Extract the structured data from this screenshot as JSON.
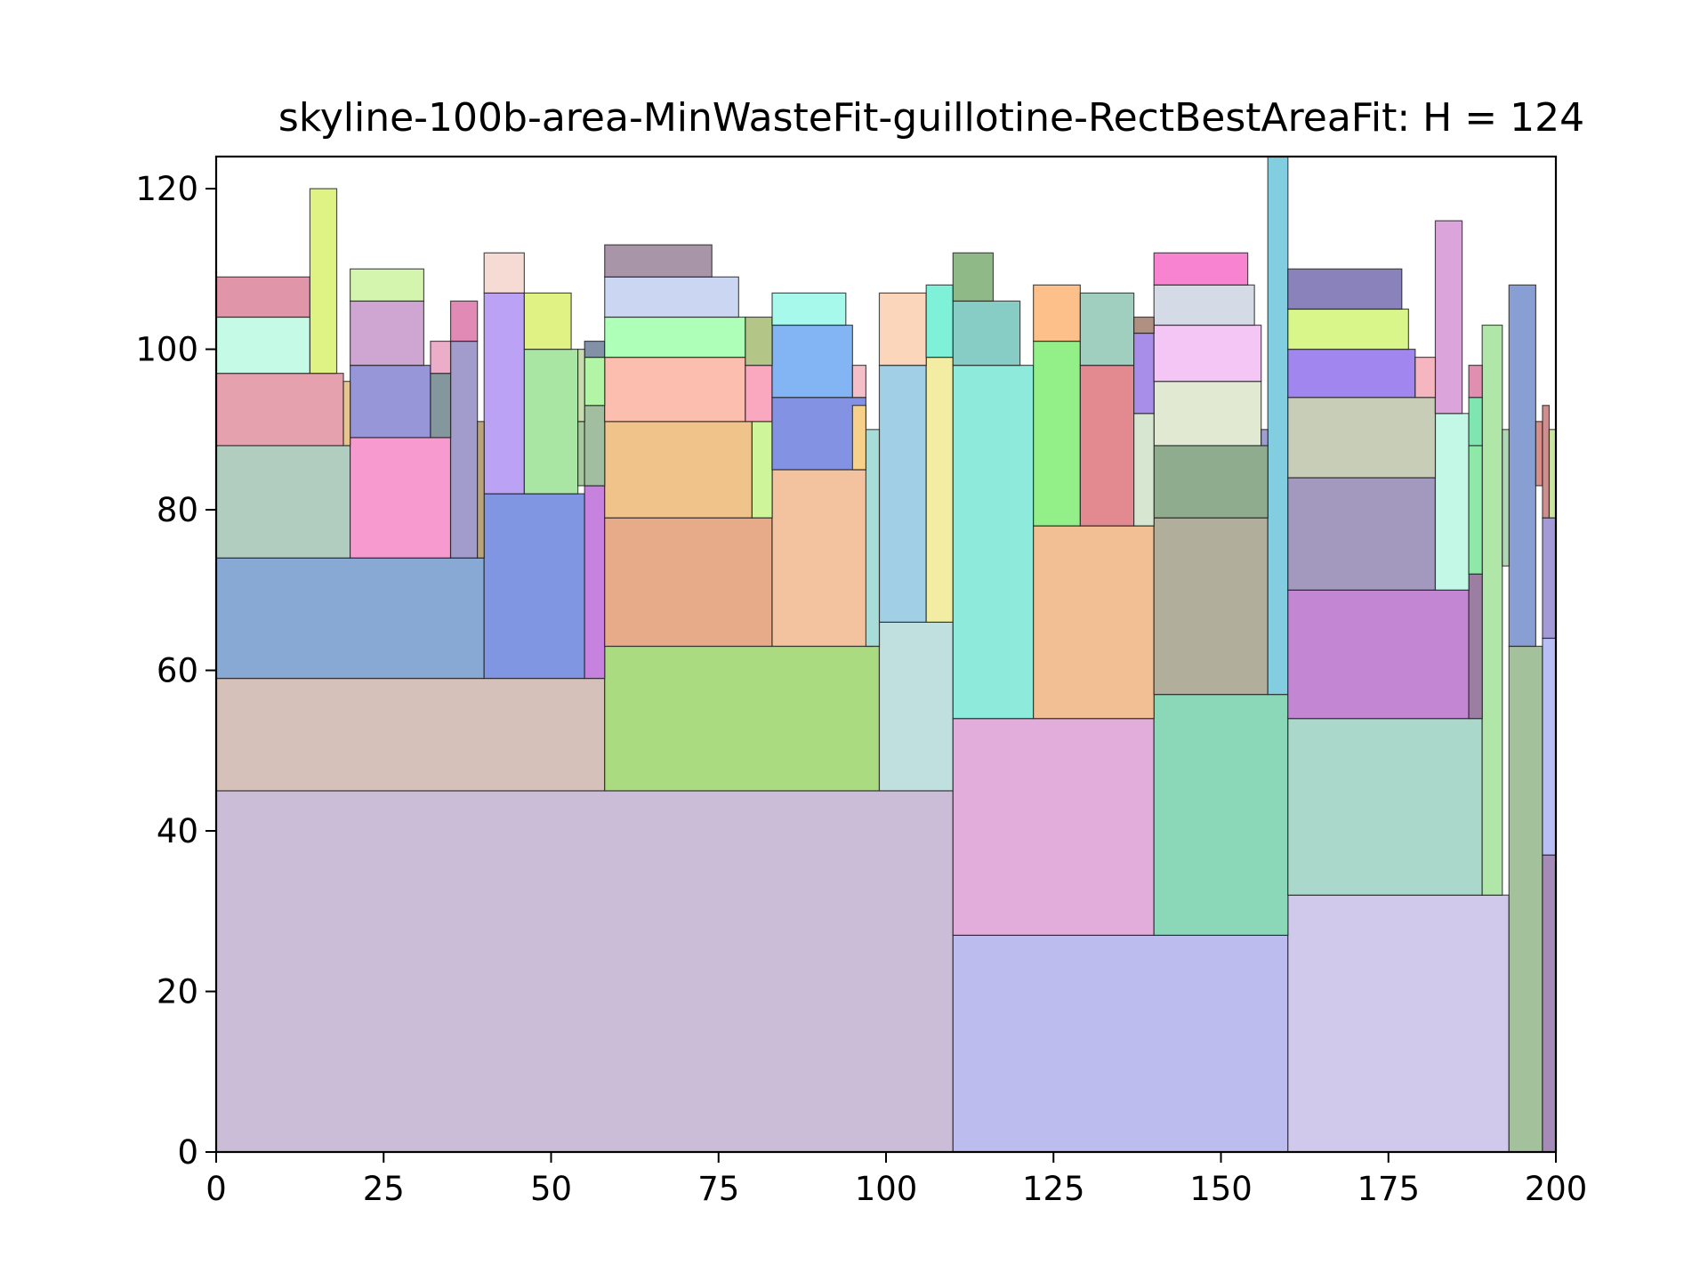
{
  "chart_data": {
    "type": "rectangle-packing",
    "title": "skyline-100b-area-MinWasteFit-guillotine-RectBestAreaFit: H = 124",
    "xlabel": "",
    "ylabel": "",
    "xlim": [
      0,
      200
    ],
    "ylim": [
      0,
      124
    ],
    "xticks": [
      0,
      25,
      50,
      75,
      100,
      125,
      150,
      175,
      200
    ],
    "yticks": [
      0,
      20,
      40,
      60,
      80,
      100,
      120
    ],
    "grid": false,
    "rects": [
      {
        "x": 0,
        "y": 0,
        "w": 110,
        "h": 45,
        "color": "#cbbcd8"
      },
      {
        "x": 110,
        "y": 0,
        "w": 50,
        "h": 27,
        "color": "#bcbcef"
      },
      {
        "x": 160,
        "y": 0,
        "w": 33,
        "h": 32,
        "color": "#d0c9eb"
      },
      {
        "x": 193,
        "y": 0,
        "w": 5,
        "h": 63,
        "color": "#a3c29b"
      },
      {
        "x": 198,
        "y": 0,
        "w": 2,
        "h": 37,
        "color": "#a68ab8"
      },
      {
        "x": 198,
        "y": 37,
        "w": 2,
        "h": 27,
        "color": "#b8bff5"
      },
      {
        "x": 198,
        "y": 64,
        "w": 2,
        "h": 15,
        "color": "#a59ad8"
      },
      {
        "x": 0,
        "y": 45,
        "w": 58,
        "h": 14,
        "color": "#d6c0ba"
      },
      {
        "x": 58,
        "y": 45,
        "w": 41,
        "h": 18,
        "color": "#abdb80"
      },
      {
        "x": 99,
        "y": 45,
        "w": 11,
        "h": 21,
        "color": "#c0e0e0"
      },
      {
        "x": 110,
        "y": 27,
        "w": 30,
        "h": 27,
        "color": "#e2addb"
      },
      {
        "x": 140,
        "y": 27,
        "w": 20,
        "h": 30,
        "color": "#8ad8b8"
      },
      {
        "x": 160,
        "y": 32,
        "w": 29,
        "h": 22,
        "color": "#aad9cb"
      },
      {
        "x": 189,
        "y": 32,
        "w": 3,
        "h": 71,
        "color": "#b0e7a8"
      },
      {
        "x": 0,
        "y": 59,
        "w": 40,
        "h": 15,
        "color": "#87a9d4"
      },
      {
        "x": 40,
        "y": 59,
        "w": 15,
        "h": 23,
        "color": "#8196e2"
      },
      {
        "x": 55,
        "y": 59,
        "w": 3,
        "h": 24,
        "color": "#c782de"
      },
      {
        "x": 58,
        "y": 63,
        "w": 25,
        "h": 16,
        "color": "#e7ab89"
      },
      {
        "x": 83,
        "y": 63,
        "w": 15,
        "h": 22,
        "color": "#f3c39f"
      },
      {
        "x": 99,
        "y": 66,
        "w": 7,
        "h": 32,
        "color": "#a1d0e6"
      },
      {
        "x": 106,
        "y": 66,
        "w": 4,
        "h": 33,
        "color": "#f2eda2"
      },
      {
        "x": 110,
        "y": 54,
        "w": 12,
        "h": 44,
        "color": "#8eeadb"
      },
      {
        "x": 122,
        "y": 54,
        "w": 18,
        "h": 24,
        "color": "#f2be93"
      },
      {
        "x": 140,
        "y": 57,
        "w": 17,
        "h": 22,
        "color": "#b2ae9c"
      },
      {
        "x": 157,
        "y": 57,
        "w": 3,
        "h": 67,
        "color": "#82cde0"
      },
      {
        "x": 160,
        "y": 54,
        "w": 27,
        "h": 16,
        "color": "#c386d3"
      },
      {
        "x": 187,
        "y": 54,
        "w": 2,
        "h": 18,
        "color": "#9c7ea3"
      },
      {
        "x": 193,
        "y": 63,
        "w": 4,
        "h": 45,
        "color": "#879fd2"
      },
      {
        "x": 0,
        "y": 74,
        "w": 20,
        "h": 14,
        "color": "#b1cdc0"
      },
      {
        "x": 20,
        "y": 74,
        "w": 15,
        "h": 15,
        "color": "#f69ad0"
      },
      {
        "x": 35,
        "y": 74,
        "w": 4,
        "h": 27,
        "color": "#a29ccc"
      },
      {
        "x": 58,
        "y": 79,
        "w": 22,
        "h": 12,
        "color": "#f0c38b"
      },
      {
        "x": 80,
        "y": 79,
        "w": 3,
        "h": 12,
        "color": "#cff59b"
      },
      {
        "x": 122,
        "y": 78,
        "w": 7,
        "h": 23,
        "color": "#93f089"
      },
      {
        "x": 129,
        "y": 78,
        "w": 8,
        "h": 20,
        "color": "#e28a8f"
      },
      {
        "x": 140,
        "y": 79,
        "w": 17,
        "h": 9,
        "color": "#8fad8e"
      },
      {
        "x": 160,
        "y": 70,
        "w": 22,
        "h": 14,
        "color": "#a398bd"
      },
      {
        "x": 182,
        "y": 70,
        "w": 5,
        "h": 22,
        "color": "#c3f7e6"
      },
      {
        "x": 187,
        "y": 72,
        "w": 2,
        "h": 16,
        "color": "#8ee8a8"
      },
      {
        "x": 0,
        "y": 88,
        "w": 19,
        "h": 9,
        "color": "#e6a1ae"
      },
      {
        "x": 20,
        "y": 89,
        "w": 12,
        "h": 9,
        "color": "#9696d8"
      },
      {
        "x": 32,
        "y": 89,
        "w": 3,
        "h": 8,
        "color": "#84979c"
      },
      {
        "x": 40,
        "y": 82,
        "w": 6,
        "h": 25,
        "color": "#bba2f5"
      },
      {
        "x": 46,
        "y": 82,
        "w": 8,
        "h": 18,
        "color": "#a9e6a3"
      },
      {
        "x": 54,
        "y": 83,
        "w": 1,
        "h": 8,
        "color": "#a8c8a0"
      },
      {
        "x": 55,
        "y": 83,
        "w": 3,
        "h": 10,
        "color": "#a1bea0"
      },
      {
        "x": 58,
        "y": 91,
        "w": 21,
        "h": 8,
        "color": "#fcbeae"
      },
      {
        "x": 79,
        "y": 91,
        "w": 4,
        "h": 7,
        "color": "#f9a8c0"
      },
      {
        "x": 83,
        "y": 85,
        "w": 14,
        "h": 9,
        "color": "#8392e2"
      },
      {
        "x": 83,
        "y": 94,
        "w": 12,
        "h": 9,
        "color": "#83b5f5"
      },
      {
        "x": 140,
        "y": 88,
        "w": 16,
        "h": 8,
        "color": "#e1e9d2"
      },
      {
        "x": 137,
        "y": 78,
        "w": 3,
        "h": 14,
        "color": "#d6e6d0"
      },
      {
        "x": 160,
        "y": 84,
        "w": 22,
        "h": 10,
        "color": "#c8cdb7"
      },
      {
        "x": 0,
        "y": 97,
        "w": 14,
        "h": 7,
        "color": "#c4fae6"
      },
      {
        "x": 0,
        "y": 104,
        "w": 14,
        "h": 5,
        "color": "#e095a8"
      },
      {
        "x": 14,
        "y": 97,
        "w": 4,
        "h": 23,
        "color": "#dff385"
      },
      {
        "x": 20,
        "y": 98,
        "w": 11,
        "h": 8,
        "color": "#cfa5d2"
      },
      {
        "x": 20,
        "y": 106,
        "w": 11,
        "h": 4,
        "color": "#d3f5ad"
      },
      {
        "x": 32,
        "y": 97,
        "w": 3,
        "h": 4,
        "color": "#ecadc9"
      },
      {
        "x": 35,
        "y": 101,
        "w": 4,
        "h": 5,
        "color": "#e08ab5"
      },
      {
        "x": 40,
        "y": 107,
        "w": 6,
        "h": 5,
        "color": "#f6dbd5"
      },
      {
        "x": 46,
        "y": 100,
        "w": 7,
        "h": 7,
        "color": "#e0f283"
      },
      {
        "x": 55,
        "y": 93,
        "w": 3,
        "h": 6,
        "color": "#b3f5a6"
      },
      {
        "x": 55,
        "y": 99,
        "w": 3,
        "h": 2,
        "color": "#8290a8"
      },
      {
        "x": 58,
        "y": 99,
        "w": 21,
        "h": 5,
        "color": "#aeffb8"
      },
      {
        "x": 58,
        "y": 104,
        "w": 20,
        "h": 5,
        "color": "#cad6f2"
      },
      {
        "x": 58,
        "y": 109,
        "w": 16,
        "h": 4,
        "color": "#a895a8"
      },
      {
        "x": 79,
        "y": 98,
        "w": 4,
        "h": 6,
        "color": "#b3c687"
      },
      {
        "x": 83,
        "y": 103,
        "w": 11,
        "h": 4,
        "color": "#a6f9eb"
      },
      {
        "x": 95,
        "y": 94,
        "w": 2,
        "h": 4,
        "color": "#f5bfca"
      },
      {
        "x": 99,
        "y": 98,
        "w": 7,
        "h": 9,
        "color": "#fbd6bb"
      },
      {
        "x": 106,
        "y": 99,
        "w": 4,
        "h": 9,
        "color": "#7ff1d9"
      },
      {
        "x": 110,
        "y": 98,
        "w": 10,
        "h": 8,
        "color": "#87cdc6"
      },
      {
        "x": 110,
        "y": 106,
        "w": 6,
        "h": 6,
        "color": "#8fba87"
      },
      {
        "x": 122,
        "y": 101,
        "w": 7,
        "h": 7,
        "color": "#fdc08a"
      },
      {
        "x": 129,
        "y": 98,
        "w": 8,
        "h": 9,
        "color": "#a0cfc0"
      },
      {
        "x": 137,
        "y": 92,
        "w": 3,
        "h": 10,
        "color": "#a88ee8"
      },
      {
        "x": 140,
        "y": 96,
        "w": 16,
        "h": 7,
        "color": "#f4c6f5"
      },
      {
        "x": 140,
        "y": 103,
        "w": 15,
        "h": 5,
        "color": "#d4dbe6"
      },
      {
        "x": 140,
        "y": 108,
        "w": 14,
        "h": 4,
        "color": "#f883d1"
      },
      {
        "x": 160,
        "y": 94,
        "w": 19,
        "h": 6,
        "color": "#a286f0"
      },
      {
        "x": 160,
        "y": 100,
        "w": 18,
        "h": 5,
        "color": "#d9f68b"
      },
      {
        "x": 160,
        "y": 105,
        "w": 17,
        "h": 5,
        "color": "#8a83bb"
      },
      {
        "x": 182,
        "y": 92,
        "w": 4,
        "h": 24,
        "color": "#dba5db"
      },
      {
        "x": 187,
        "y": 88,
        "w": 2,
        "h": 6,
        "color": "#7fe6b0"
      },
      {
        "x": 187,
        "y": 94,
        "w": 2,
        "h": 4,
        "color": "#e08fb0"
      },
      {
        "x": 179,
        "y": 94,
        "w": 3,
        "h": 5,
        "color": "#f6b6c0"
      },
      {
        "x": 192,
        "y": 73,
        "w": 1,
        "h": 17,
        "color": "#b0d6b8"
      },
      {
        "x": 197,
        "y": 83,
        "w": 1,
        "h": 8,
        "color": "#d68f8a"
      },
      {
        "x": 198,
        "y": 79,
        "w": 1,
        "h": 14,
        "color": "#d08f8f"
      },
      {
        "x": 199,
        "y": 79,
        "w": 1,
        "h": 11,
        "color": "#c8e6a0"
      },
      {
        "x": 97,
        "y": 63,
        "w": 2,
        "h": 27,
        "color": "#a8dcd8"
      },
      {
        "x": 95,
        "y": 85,
        "w": 2,
        "h": 8,
        "color": "#f7d08a"
      },
      {
        "x": 39,
        "y": 74,
        "w": 1,
        "h": 17,
        "color": "#bba47c"
      },
      {
        "x": 19,
        "y": 88,
        "w": 1,
        "h": 8,
        "color": "#e6c58f"
      },
      {
        "x": 156,
        "y": 88,
        "w": 1,
        "h": 2,
        "color": "#a0a0d0"
      },
      {
        "x": 137,
        "y": 102,
        "w": 3,
        "h": 2,
        "color": "#b09080"
      },
      {
        "x": 54,
        "y": 91,
        "w": 1,
        "h": 9,
        "color": "#c8dcb0"
      }
    ]
  }
}
